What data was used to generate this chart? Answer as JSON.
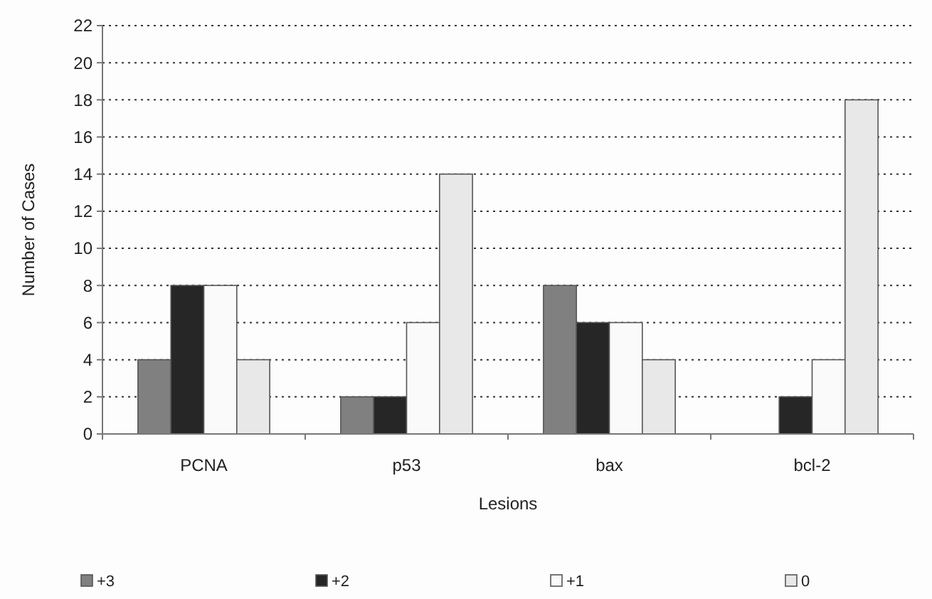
{
  "chart_data": {
    "type": "bar",
    "xlabel": "Lesions",
    "ylabel": "Number of Cases",
    "categories": [
      "PCNA",
      "p53",
      "bax",
      "bcl-2"
    ],
    "series": [
      {
        "name": "+3",
        "color": "#808080",
        "values": [
          4,
          2,
          8,
          0
        ]
      },
      {
        "name": "+2",
        "color": "#262626",
        "values": [
          8,
          2,
          6,
          2
        ]
      },
      {
        "name": "+1",
        "color": "#fafafa",
        "values": [
          8,
          6,
          6,
          4
        ]
      },
      {
        "name": "0",
        "color": "#e8e8e8",
        "values": [
          4,
          14,
          4,
          18
        ]
      }
    ],
    "ylim": [
      0,
      22
    ],
    "yticks": [
      0,
      2,
      4,
      6,
      8,
      10,
      12,
      14,
      16,
      18,
      20,
      22
    ],
    "grid": "y",
    "legend": "bottom"
  }
}
